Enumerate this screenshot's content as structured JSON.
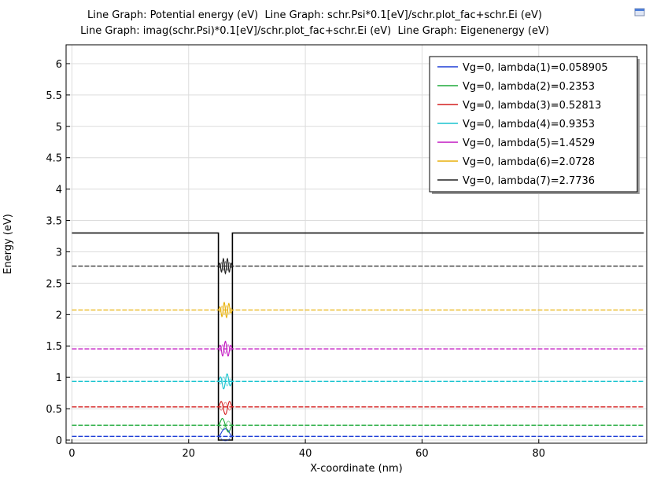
{
  "titles": [
    "Line Graph: Potential energy (eV)  Line Graph: schr.Psi*0.1[eV]/schr.plot_fac+schr.Ei (eV)",
    "Line Graph: imag(schr.Psi)*0.1[eV]/schr.plot_fac+schr.Ei (eV)  Line Graph: Eigenenergy (eV)"
  ],
  "toolbar": {
    "icon": "zoom-extents-icon"
  },
  "chart_data": {
    "type": "line",
    "xlabel": "X-coordinate (nm)",
    "ylabel": "Energy (eV)",
    "xlim": [
      -1,
      98.5
    ],
    "ylim": [
      -0.05,
      6.3
    ],
    "xticks": [
      0,
      20,
      40,
      60,
      80
    ],
    "yticks": [
      0,
      0.5,
      1,
      1.5,
      2,
      2.5,
      3,
      3.5,
      4,
      4.5,
      5,
      5.5,
      6
    ],
    "ytick_labels": [
      "0",
      "0.5",
      "1",
      "1.5",
      "2",
      "2.5",
      "3",
      "3.5",
      "4",
      "4.5",
      "5",
      "5.5",
      "6"
    ],
    "grid": true,
    "legend_position": "top-right",
    "potential": {
      "color": "#000000",
      "barrier_height": 3.3,
      "well_start": 25.1,
      "well_end": 27.5
    },
    "series": [
      {
        "name": "Vg=0, lambda(1)=0.058905",
        "color": "#1f3fd6",
        "energy": 0.058905,
        "nodes": 1
      },
      {
        "name": "Vg=0, lambda(2)=0.2353",
        "color": "#1faa3a",
        "energy": 0.2353,
        "nodes": 2
      },
      {
        "name": "Vg=0, lambda(3)=0.52813",
        "color": "#d41f1f",
        "energy": 0.52813,
        "nodes": 3
      },
      {
        "name": "Vg=0, lambda(4)=0.9353",
        "color": "#19c4cf",
        "energy": 0.9353,
        "nodes": 4
      },
      {
        "name": "Vg=0, lambda(5)=1.4529",
        "color": "#c219c2",
        "energy": 1.4529,
        "nodes": 5
      },
      {
        "name": "Vg=0, lambda(6)=2.0728",
        "color": "#e8b10c",
        "energy": 2.0728,
        "nodes": 6
      },
      {
        "name": "Vg=0, lambda(7)=2.7736",
        "color": "#222222",
        "energy": 2.7736,
        "nodes": 7
      }
    ]
  }
}
